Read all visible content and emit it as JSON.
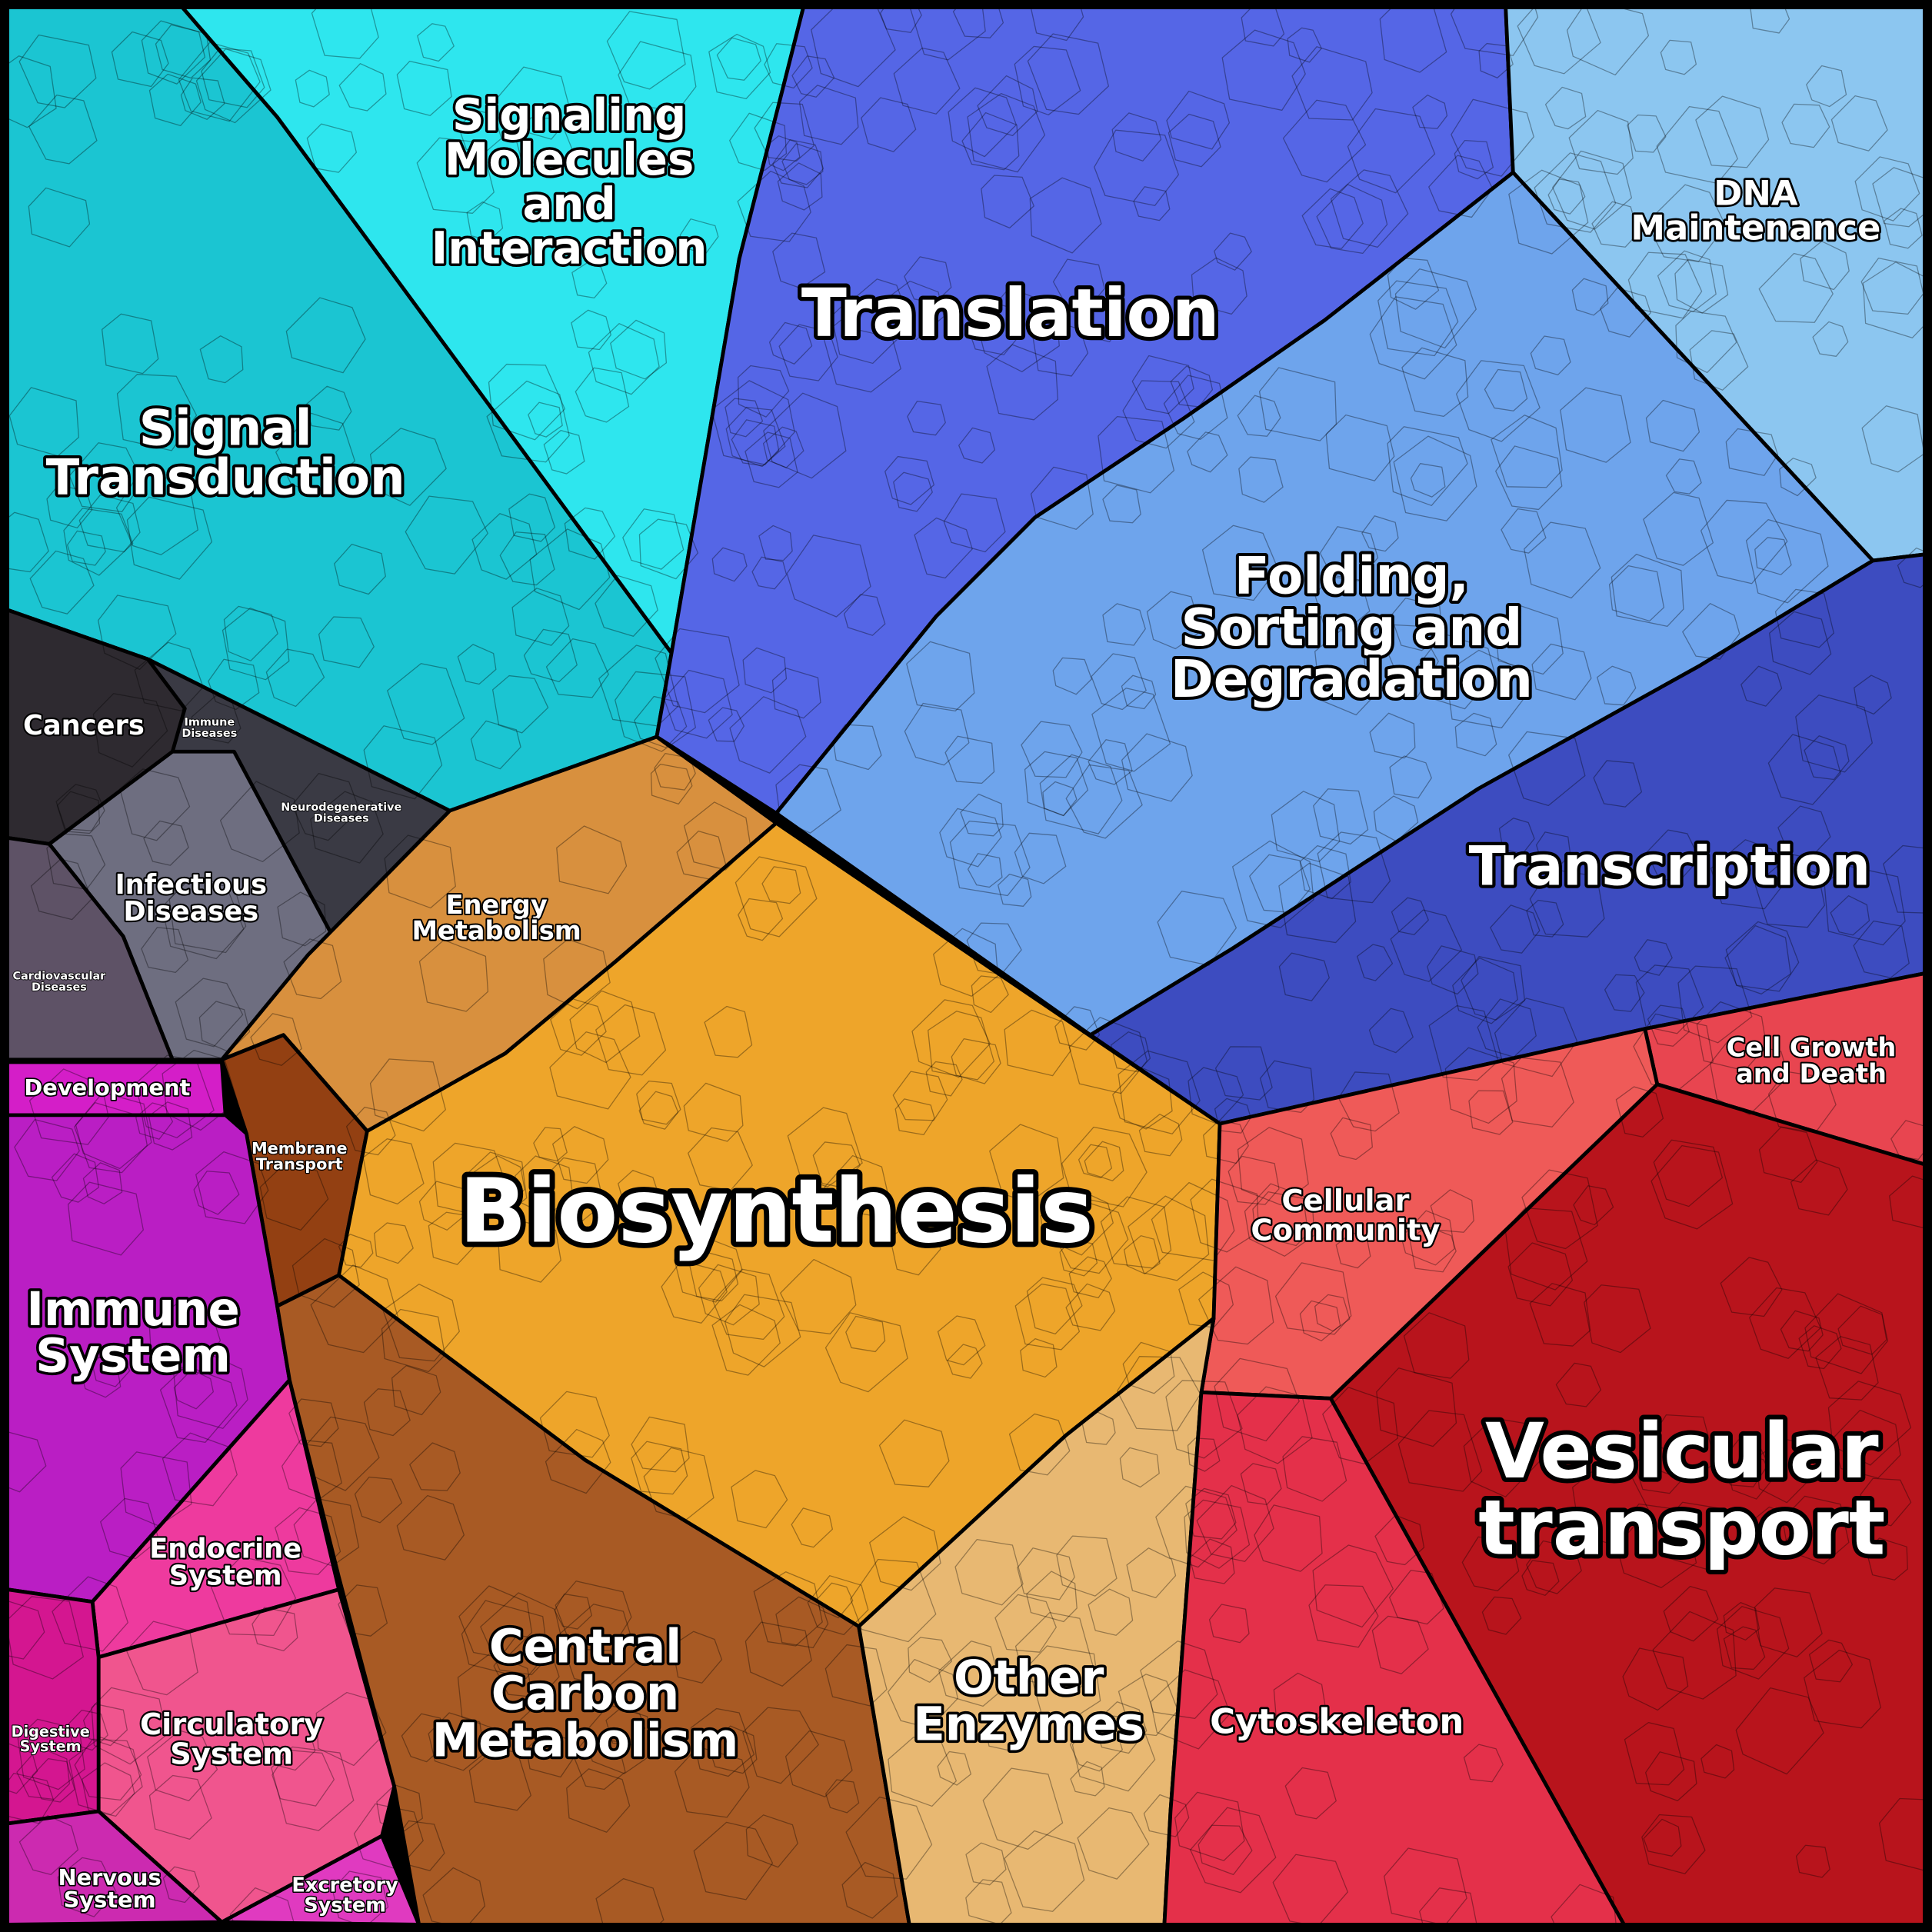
{
  "regions": [
    {
      "lines": [
        "Signal",
        "Transduction"
      ]
    },
    {
      "lines": [
        "Signaling",
        "Molecules",
        "and",
        "Interaction"
      ]
    },
    {
      "lines": [
        "Translation"
      ]
    },
    {
      "lines": [
        "DNA",
        "Maintenance"
      ]
    },
    {
      "lines": [
        "Folding,",
        "Sorting and",
        "Degradation"
      ]
    },
    {
      "lines": [
        "Transcription"
      ]
    },
    {
      "lines": [
        "Cancers"
      ]
    },
    {
      "lines": [
        "Immune",
        "Diseases"
      ]
    },
    {
      "lines": [
        "Neurodegenerative",
        "Diseases"
      ]
    },
    {
      "lines": [
        "Infectious",
        "Diseases"
      ]
    },
    {
      "lines": [
        "Cardiovascular",
        "Diseases"
      ]
    },
    {
      "lines": [
        "Energy",
        "Metabolism"
      ]
    },
    {
      "lines": [
        "Development"
      ]
    },
    {
      "lines": [
        "Membrane",
        "Transport"
      ]
    },
    {
      "lines": [
        "Biosynthesis"
      ]
    },
    {
      "lines": [
        "Cell Growth",
        "and Death"
      ]
    },
    {
      "lines": [
        "Cellular",
        "Community"
      ]
    },
    {
      "lines": [
        "Immune",
        "System"
      ]
    },
    {
      "lines": [
        "Vesicular",
        "transport"
      ]
    },
    {
      "lines": [
        "Endocrine",
        "System"
      ]
    },
    {
      "lines": [
        "Central",
        "Carbon",
        "Metabolism"
      ]
    },
    {
      "lines": [
        "Other",
        "Enzymes"
      ]
    },
    {
      "lines": [
        "Circulatory",
        "System"
      ]
    },
    {
      "lines": [
        "Cytoskeleton"
      ]
    },
    {
      "lines": [
        "Digestive",
        "System"
      ]
    },
    {
      "lines": [
        "Nervous",
        "System"
      ]
    },
    {
      "lines": [
        "Excretory",
        "System"
      ]
    }
  ]
}
